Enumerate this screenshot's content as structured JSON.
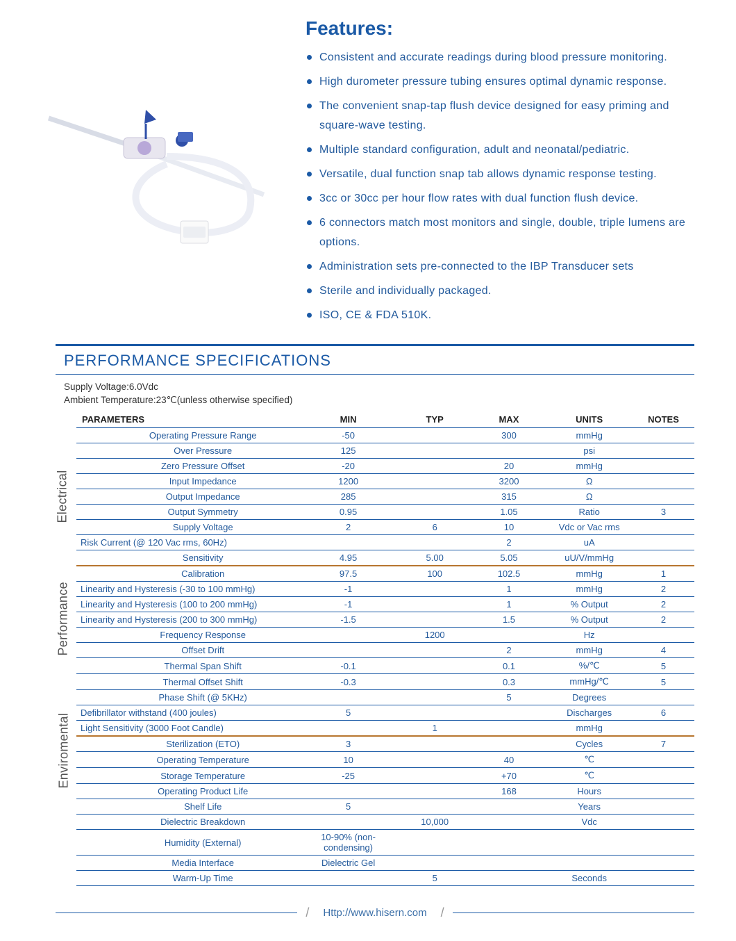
{
  "colors": {
    "primary": "#1b5aa6",
    "text": "#2a5a9e",
    "blue_text": "#235a9c",
    "row_border": "#1b5aa6",
    "section_border": "#b8762f",
    "footer_text": "#3b6fa8"
  },
  "features": {
    "title": "Features:",
    "items": [
      "Consistent and accurate readings during blood pressure monitoring.",
      "High durometer pressure tubing ensures optimal dynamic response.",
      "The convenient snap-tap flush device designed for easy priming and square-wave testing.",
      "Multiple standard configuration, adult and neonatal/pediatric.",
      "Versatile, dual function snap tab allows dynamic response testing.",
      "3cc or 30cc per hour flow rates with dual function flush device.",
      "6 connectors match most monitors and single, double, triple lumens are options.",
      "Administration sets pre-connected to the IBP Transducer sets",
      "Sterile and individually packaged.",
      "ISO, CE & FDA 510K."
    ]
  },
  "spec": {
    "title": "PERFORMANCE SPECIFICATIONS",
    "sub1": "Supply Voltage:6.0Vdc",
    "sub2": "Ambient Temperature:23℃(unless otherwise specified)",
    "columns": [
      "PARAMETERS",
      "MIN",
      "TYP",
      "MAX",
      "UNITS",
      "NOTES"
    ],
    "sections": [
      {
        "label": "Electrical",
        "rows": [
          [
            "Operating Pressure Range",
            "-50",
            "",
            "300",
            "mmHg",
            ""
          ],
          [
            "Over  Pressure",
            "125",
            "",
            "",
            "psi",
            ""
          ],
          [
            "Zero Pressure Offset",
            "-20",
            "",
            "20",
            "mmHg",
            ""
          ],
          [
            "Input Impedance",
            "1200",
            "",
            "3200",
            "Ω",
            ""
          ],
          [
            "Output Impedance",
            "285",
            "",
            "315",
            "Ω",
            ""
          ],
          [
            "Output Symmetry",
            "0.95",
            "",
            "1.05",
            "Ratio",
            "3"
          ],
          [
            "Supply Voltage",
            "2",
            "6",
            "10",
            "Vdc or Vac rms",
            ""
          ],
          [
            "Risk Current (@ 120 Vac rms, 60Hz)",
            "",
            "",
            "2",
            "uA",
            ""
          ],
          [
            "Sensitivity",
            "4.95",
            "5.00",
            "5.05",
            "uU/V/mmHg",
            ""
          ]
        ]
      },
      {
        "label": "Performance",
        "rows": [
          [
            "Calibration",
            "97.5",
            "100",
            "102.5",
            "mmHg",
            "1"
          ],
          [
            "Linearity and Hysteresis (-30 to 100 mmHg)",
            "-1",
            "",
            "1",
            "mmHg",
            "2"
          ],
          [
            "Linearity and Hysteresis (100 to 200 mmHg)",
            "-1",
            "",
            "1",
            "% Output",
            "2"
          ],
          [
            "Linearity and Hysteresis (200 to 300 mmHg)",
            "-1.5",
            "",
            "1.5",
            "% Output",
            "2"
          ],
          [
            "Frequency Response",
            "",
            "1200",
            "",
            "Hz",
            ""
          ],
          [
            "Offset Drift",
            "",
            "",
            "2",
            "mmHg",
            "4"
          ],
          [
            "Thermal Span Shift",
            "-0.1",
            "",
            "0.1",
            "%/℃",
            "5"
          ],
          [
            "Thermal Offset Shift",
            "-0.3",
            "",
            "0.3",
            "mmHg/℃",
            "5"
          ],
          [
            "Phase Shift (@ 5KHz)",
            "",
            "",
            "5",
            "Degrees",
            ""
          ],
          [
            "Defibrillator withstand (400 joules)",
            "5",
            "",
            "",
            "Discharges",
            "6"
          ],
          [
            "Light Sensitivity (3000 Foot Candle)",
            "",
            "1",
            "",
            "mmHg",
            ""
          ]
        ]
      },
      {
        "label": "Enviromental",
        "rows": [
          [
            "Sterilization (ETO)",
            "3",
            "",
            "",
            "Cycles",
            "7"
          ],
          [
            "Operating Temperature",
            "10",
            "",
            "40",
            "℃",
            ""
          ],
          [
            "Storage Temperature",
            "-25",
            "",
            "+70",
            "℃",
            ""
          ],
          [
            "Operating Product Life",
            "",
            "",
            "168",
            "Hours",
            ""
          ],
          [
            "Shelf Life",
            "5",
            "",
            "",
            "Years",
            ""
          ],
          [
            "Dielectric Breakdown",
            "",
            "10,000",
            "",
            "Vdc",
            ""
          ],
          [
            "Humidity (External)",
            "10-90% (non-condensing)",
            "",
            "",
            "",
            ""
          ],
          [
            "Media Interface",
            "Dielectric Gel",
            "",
            "",
            "",
            ""
          ],
          [
            "Warm-Up Time",
            "",
            "5",
            "",
            "Seconds",
            ""
          ]
        ]
      }
    ],
    "left_aligned_param_prefixes": [
      "Linearity",
      "Risk Current",
      "Defibrillator",
      "Light Sensitivity"
    ],
    "col_widths": [
      "36%",
      "16%",
      "12%",
      "12%",
      "14%",
      "10%"
    ]
  },
  "footer": {
    "url": "Http://www.hisern.com"
  }
}
